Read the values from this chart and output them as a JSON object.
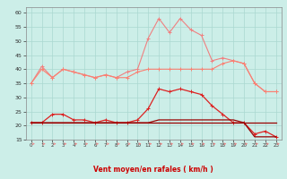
{
  "x": [
    0,
    1,
    2,
    3,
    4,
    5,
    6,
    7,
    8,
    9,
    10,
    11,
    12,
    13,
    14,
    15,
    16,
    17,
    18,
    19,
    20,
    21,
    22,
    23
  ],
  "series1": [
    35,
    41,
    37,
    40,
    39,
    38,
    37,
    38,
    37,
    39,
    40,
    51,
    58,
    53,
    58,
    54,
    52,
    43,
    44,
    43,
    42,
    35,
    32,
    32
  ],
  "series2": [
    35,
    40,
    37,
    40,
    39,
    38,
    37,
    38,
    37,
    37,
    39,
    40,
    40,
    40,
    40,
    40,
    40,
    40,
    42,
    43,
    42,
    35,
    32,
    32
  ],
  "series3": [
    21,
    21,
    24,
    24,
    22,
    22,
    21,
    22,
    21,
    21,
    22,
    26,
    33,
    32,
    33,
    32,
    31,
    27,
    24,
    21,
    21,
    17,
    18,
    16
  ],
  "series4": [
    21,
    21,
    21,
    21,
    21,
    21,
    21,
    21,
    21,
    21,
    21,
    21,
    22,
    22,
    22,
    22,
    22,
    22,
    22,
    22,
    21,
    16,
    16,
    16
  ],
  "series5": [
    21,
    21,
    21,
    21,
    21,
    21,
    21,
    21,
    21,
    21,
    21,
    21,
    21,
    21,
    21,
    21,
    21,
    21,
    21,
    21,
    21,
    21,
    21,
    21
  ],
  "color_light_salmon": "#f08080",
  "color_salmon": "#fa8072",
  "color_red": "#cc0000",
  "color_dark_red": "#990000",
  "color_medium_red": "#dd2222",
  "bg_color": "#cceee8",
  "grid_color": "#aad8d0",
  "xlabel": "Vent moyen/en rafales ( km/h )",
  "ylim": [
    15,
    62
  ],
  "yticks": [
    15,
    20,
    25,
    30,
    35,
    40,
    45,
    50,
    55,
    60
  ],
  "xlim": [
    -0.5,
    23.5
  ],
  "xticks": [
    0,
    1,
    2,
    3,
    4,
    5,
    6,
    7,
    8,
    9,
    10,
    11,
    12,
    13,
    14,
    15,
    16,
    17,
    18,
    19,
    20,
    21,
    22,
    23
  ]
}
